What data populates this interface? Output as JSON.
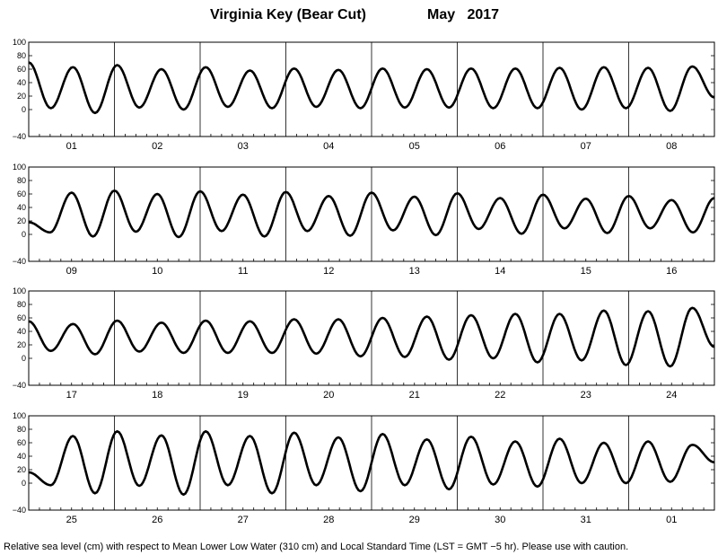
{
  "header": {
    "station": "Virginia Key (Bear Cut)",
    "period": "May   2017"
  },
  "footer": {
    "note": "Relative sea level (cm) with respect to Mean Lower Low Water (310 cm) and Local Standard Time (LST = GMT −5 hr). Please use with caution."
  },
  "chart_data": {
    "type": "line",
    "title": "Virginia Key (Bear Cut)          May   2017",
    "ylim": [
      -40,
      100
    ],
    "y_ticks": [
      "100",
      "80",
      "60",
      "40",
      "20",
      "0",
      "−40"
    ],
    "y_tick_values": [
      100,
      80,
      60,
      40,
      20,
      0,
      -40
    ],
    "grid": "vertical day separators",
    "panels": [
      {
        "days": [
          "01",
          "02",
          "03",
          "04",
          "05",
          "06",
          "07",
          "08"
        ],
        "extrema": [
          70,
          2,
          63,
          -5,
          66,
          3,
          60,
          0,
          63,
          4,
          58,
          2,
          61,
          4,
          59,
          2,
          61,
          3,
          60,
          3,
          61,
          2,
          61,
          2,
          62,
          0,
          63,
          2,
          62,
          -2,
          64,
          18
        ]
      },
      {
        "days": [
          "09",
          "10",
          "11",
          "12",
          "13",
          "14",
          "15",
          "16"
        ],
        "extrema": [
          18,
          3,
          62,
          -3,
          65,
          4,
          60,
          -4,
          64,
          5,
          59,
          -3,
          63,
          5,
          57,
          -2,
          62,
          6,
          56,
          -1,
          61,
          8,
          54,
          1,
          59,
          9,
          53,
          2,
          57,
          9,
          51,
          3,
          54
        ]
      },
      {
        "days": [
          "17",
          "18",
          "19",
          "20",
          "21",
          "22",
          "23",
          "24"
        ],
        "extrema": [
          55,
          11,
          51,
          6,
          56,
          10,
          53,
          8,
          56,
          8,
          55,
          8,
          58,
          7,
          58,
          3,
          60,
          2,
          62,
          -2,
          64,
          0,
          66,
          -6,
          66,
          -3,
          71,
          -10,
          70,
          -12,
          75,
          17
        ]
      },
      {
        "days": [
          "25",
          "26",
          "27",
          "28",
          "29",
          "30",
          "31",
          "01"
        ],
        "extrema": [
          16,
          -3,
          70,
          -15,
          77,
          -4,
          71,
          -17,
          77,
          -3,
          70,
          -15,
          75,
          -3,
          68,
          -12,
          73,
          -3,
          65,
          -9,
          69,
          -2,
          62,
          -5,
          66,
          0,
          60,
          0,
          62,
          2,
          57,
          31
        ]
      }
    ]
  }
}
